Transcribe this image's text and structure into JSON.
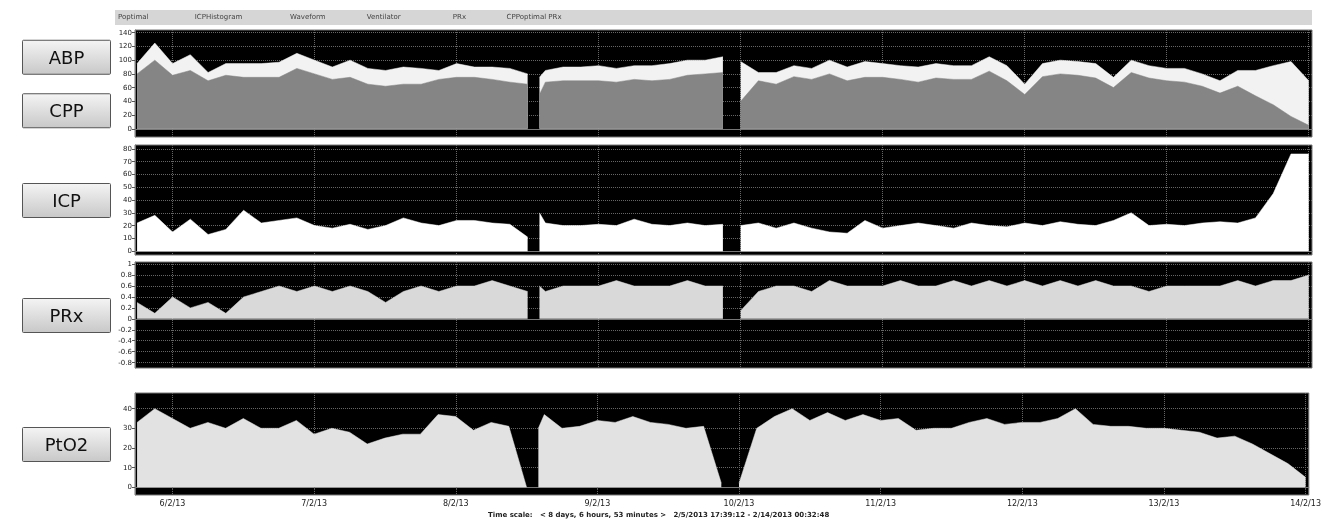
{
  "chart_data": [
    {
      "type": "area",
      "annotations": [
        "Poptimal",
        "ICPHistogram",
        "Waveform",
        "Ventilator",
        "PRx",
        "CPPoptimal PRx"
      ],
      "x": [
        "2013-02-05T18:00",
        "2013-02-05T21:00",
        "2013-02-06T00:00",
        "2013-02-06T03:00",
        "2013-02-06T06:00",
        "2013-02-06T09:00",
        "2013-02-06T12:00",
        "2013-02-06T15:00",
        "2013-02-06T18:00",
        "2013-02-06T21:00",
        "2013-02-07T00:00",
        "2013-02-07T03:00",
        "2013-02-07T06:00",
        "2013-02-07T09:00",
        "2013-02-07T12:00",
        "2013-02-07T15:00",
        "2013-02-07T18:00",
        "2013-02-07T21:00",
        "2013-02-08T00:00",
        "2013-02-08T03:00",
        "2013-02-08T06:00",
        "2013-02-08T09:00",
        "2013-02-08T12:00",
        "2013-02-08T13:00",
        "2013-02-08T14:00",
        "2013-02-08T15:00",
        "2013-02-08T18:00",
        "2013-02-08T21:00",
        "2013-02-09T00:00",
        "2013-02-09T03:00",
        "2013-02-09T06:00",
        "2013-02-09T09:00",
        "2013-02-09T12:00",
        "2013-02-09T15:00",
        "2013-02-09T18:00",
        "2013-02-09T21:00",
        "2013-02-09T22:30",
        "2013-02-10T00:00",
        "2013-02-10T03:00",
        "2013-02-10T06:00",
        "2013-02-10T09:00",
        "2013-02-10T12:00",
        "2013-02-10T15:00",
        "2013-02-10T18:00",
        "2013-02-10T21:00",
        "2013-02-11T00:00",
        "2013-02-11T03:00",
        "2013-02-11T06:00",
        "2013-02-11T09:00",
        "2013-02-11T12:00",
        "2013-02-11T15:00",
        "2013-02-11T18:00",
        "2013-02-11T21:00",
        "2013-02-12T00:00",
        "2013-02-12T03:00",
        "2013-02-12T06:00",
        "2013-02-12T09:00",
        "2013-02-12T12:00",
        "2013-02-12T15:00",
        "2013-02-12T18:00",
        "2013-02-12T21:00",
        "2013-02-13T00:00",
        "2013-02-13T03:00",
        "2013-02-13T06:00",
        "2013-02-13T09:00",
        "2013-02-13T12:00",
        "2013-02-13T15:00",
        "2013-02-13T18:00",
        "2013-02-13T21:00",
        "2013-02-14T00:00"
      ],
      "xlim": [
        "2013-02-05T17:39",
        "2013-02-14T00:33"
      ],
      "xticks": [
        {
          "value": "2013-02-06",
          "label": null
        },
        {
          "value": "2013-02-07",
          "label": null
        },
        {
          "value": "2013-02-08",
          "label": null
        },
        {
          "value": "2013-02-09",
          "label": null
        },
        {
          "value": "2013-02-10",
          "label": null
        },
        {
          "value": "2013-02-11",
          "label": null
        },
        {
          "value": "2013-02-12",
          "label": null
        },
        {
          "value": "2013-02-13",
          "label": null
        },
        {
          "value": "2013-02-14",
          "label": null
        }
      ],
      "ylim": [
        -12,
        144
      ],
      "yticks": [
        0,
        20,
        40,
        60,
        80,
        100,
        120,
        140
      ],
      "grid": true,
      "tick_labels": "y",
      "series": [
        {
          "name": "ABP",
          "color": "#f2f2f2",
          "values": [
            95,
            125,
            95,
            108,
            82,
            95,
            95,
            95,
            97,
            110,
            100,
            90,
            100,
            88,
            85,
            90,
            88,
            85,
            95,
            90,
            90,
            88,
            80,
            null,
            75,
            85,
            90,
            90,
            92,
            88,
            92,
            92,
            95,
            100,
            100,
            105,
            null,
            98,
            82,
            82,
            92,
            88,
            100,
            90,
            98,
            95,
            92,
            90,
            95,
            92,
            92,
            105,
            92,
            65,
            95,
            100,
            98,
            95,
            75,
            100,
            92,
            88,
            88,
            80,
            70,
            85,
            85,
            92,
            98,
            70
          ]
        },
        {
          "name": "CPP",
          "color": "#858585",
          "values": [
            80,
            100,
            78,
            85,
            70,
            78,
            75,
            75,
            75,
            88,
            80,
            72,
            75,
            65,
            62,
            65,
            65,
            72,
            75,
            75,
            72,
            68,
            65,
            null,
            50,
            68,
            70,
            70,
            70,
            68,
            72,
            70,
            72,
            78,
            80,
            82,
            null,
            40,
            70,
            65,
            76,
            72,
            80,
            70,
            75,
            75,
            72,
            68,
            74,
            72,
            72,
            84,
            70,
            50,
            76,
            80,
            78,
            74,
            60,
            82,
            74,
            70,
            68,
            62,
            52,
            62,
            48,
            35,
            18,
            5
          ]
        }
      ]
    },
    {
      "type": "area",
      "x": [
        "2013-02-05T18:00",
        "2013-02-05T21:00",
        "2013-02-06T00:00",
        "2013-02-06T03:00",
        "2013-02-06T06:00",
        "2013-02-06T09:00",
        "2013-02-06T12:00",
        "2013-02-06T15:00",
        "2013-02-06T18:00",
        "2013-02-06T21:00",
        "2013-02-07T00:00",
        "2013-02-07T03:00",
        "2013-02-07T06:00",
        "2013-02-07T09:00",
        "2013-02-07T12:00",
        "2013-02-07T15:00",
        "2013-02-07T18:00",
        "2013-02-07T21:00",
        "2013-02-08T00:00",
        "2013-02-08T03:00",
        "2013-02-08T06:00",
        "2013-02-08T09:00",
        "2013-02-08T12:00",
        "2013-02-08T13:00",
        "2013-02-08T14:00",
        "2013-02-08T15:00",
        "2013-02-08T18:00",
        "2013-02-08T21:00",
        "2013-02-09T00:00",
        "2013-02-09T03:00",
        "2013-02-09T06:00",
        "2013-02-09T09:00",
        "2013-02-09T12:00",
        "2013-02-09T15:00",
        "2013-02-09T18:00",
        "2013-02-09T21:00",
        "2013-02-09T22:30",
        "2013-02-10T00:00",
        "2013-02-10T03:00",
        "2013-02-10T06:00",
        "2013-02-10T09:00",
        "2013-02-10T12:00",
        "2013-02-10T15:00",
        "2013-02-10T18:00",
        "2013-02-10T21:00",
        "2013-02-11T00:00",
        "2013-02-11T03:00",
        "2013-02-11T06:00",
        "2013-02-11T09:00",
        "2013-02-11T12:00",
        "2013-02-11T15:00",
        "2013-02-11T18:00",
        "2013-02-11T21:00",
        "2013-02-12T00:00",
        "2013-02-12T03:00",
        "2013-02-12T06:00",
        "2013-02-12T09:00",
        "2013-02-12T12:00",
        "2013-02-12T15:00",
        "2013-02-12T18:00",
        "2013-02-12T21:00",
        "2013-02-13T00:00",
        "2013-02-13T03:00",
        "2013-02-13T06:00",
        "2013-02-13T09:00",
        "2013-02-13T12:00",
        "2013-02-13T15:00",
        "2013-02-13T18:00",
        "2013-02-13T21:00",
        "2013-02-14T00:00"
      ],
      "xlim": [
        "2013-02-05T17:39",
        "2013-02-14T00:33"
      ],
      "xticks": [
        {
          "value": "2013-02-06",
          "label": null
        },
        {
          "value": "2013-02-07",
          "label": null
        },
        {
          "value": "2013-02-08",
          "label": null
        },
        {
          "value": "2013-02-09",
          "label": null
        },
        {
          "value": "2013-02-10",
          "label": null
        },
        {
          "value": "2013-02-11",
          "label": null
        },
        {
          "value": "2013-02-12",
          "label": null
        },
        {
          "value": "2013-02-13",
          "label": null
        },
        {
          "value": "2013-02-14",
          "label": null
        }
      ],
      "ylim": [
        -3,
        83
      ],
      "yticks": [
        0,
        10,
        20,
        30,
        40,
        50,
        60,
        70,
        80
      ],
      "grid": true,
      "tick_labels": "y",
      "series": [
        {
          "name": "ICP",
          "color": "#ffffff",
          "values": [
            22,
            28,
            15,
            25,
            13,
            17,
            32,
            22,
            24,
            26,
            20,
            18,
            21,
            17,
            20,
            26,
            22,
            20,
            24,
            24,
            22,
            21,
            11,
            null,
            30,
            22,
            20,
            20,
            21,
            20,
            25,
            21,
            20,
            22,
            20,
            21,
            null,
            20,
            22,
            18,
            22,
            18,
            15,
            14,
            24,
            18,
            20,
            22,
            20,
            18,
            22,
            20,
            19,
            22,
            20,
            23,
            21,
            20,
            24,
            30,
            20,
            21,
            20,
            22,
            23,
            22,
            26,
            45,
            76,
            76
          ]
        }
      ]
    },
    {
      "type": "area",
      "x": [
        "2013-02-05T18:00",
        "2013-02-05T21:00",
        "2013-02-06T00:00",
        "2013-02-06T03:00",
        "2013-02-06T06:00",
        "2013-02-06T09:00",
        "2013-02-06T12:00",
        "2013-02-06T15:00",
        "2013-02-06T18:00",
        "2013-02-06T21:00",
        "2013-02-07T00:00",
        "2013-02-07T03:00",
        "2013-02-07T06:00",
        "2013-02-07T09:00",
        "2013-02-07T12:00",
        "2013-02-07T15:00",
        "2013-02-07T18:00",
        "2013-02-07T21:00",
        "2013-02-08T00:00",
        "2013-02-08T03:00",
        "2013-02-08T06:00",
        "2013-02-08T09:00",
        "2013-02-08T12:00",
        "2013-02-08T13:00",
        "2013-02-08T14:00",
        "2013-02-08T15:00",
        "2013-02-08T18:00",
        "2013-02-08T21:00",
        "2013-02-09T00:00",
        "2013-02-09T03:00",
        "2013-02-09T06:00",
        "2013-02-09T09:00",
        "2013-02-09T12:00",
        "2013-02-09T15:00",
        "2013-02-09T18:00",
        "2013-02-09T21:00",
        "2013-02-09T22:30",
        "2013-02-10T00:00",
        "2013-02-10T03:00",
        "2013-02-10T06:00",
        "2013-02-10T09:00",
        "2013-02-10T12:00",
        "2013-02-10T15:00",
        "2013-02-10T18:00",
        "2013-02-10T21:00",
        "2013-02-11T00:00",
        "2013-02-11T03:00",
        "2013-02-11T06:00",
        "2013-02-11T09:00",
        "2013-02-11T12:00",
        "2013-02-11T15:00",
        "2013-02-11T18:00",
        "2013-02-11T21:00",
        "2013-02-12T00:00",
        "2013-02-12T03:00",
        "2013-02-12T06:00",
        "2013-02-12T09:00",
        "2013-02-12T12:00",
        "2013-02-12T15:00",
        "2013-02-12T18:00",
        "2013-02-12T21:00",
        "2013-02-13T00:00",
        "2013-02-13T03:00",
        "2013-02-13T06:00",
        "2013-02-13T09:00",
        "2013-02-13T12:00",
        "2013-02-13T15:00",
        "2013-02-13T18:00",
        "2013-02-13T21:00",
        "2013-02-14T00:00"
      ],
      "xlim": [
        "2013-02-05T17:39",
        "2013-02-14T00:33"
      ],
      "xticks": [
        {
          "value": "2013-02-06",
          "label": null
        },
        {
          "value": "2013-02-07",
          "label": null
        },
        {
          "value": "2013-02-08",
          "label": null
        },
        {
          "value": "2013-02-09",
          "label": null
        },
        {
          "value": "2013-02-10",
          "label": null
        },
        {
          "value": "2013-02-11",
          "label": null
        },
        {
          "value": "2013-02-12",
          "label": null
        },
        {
          "value": "2013-02-13",
          "label": null
        },
        {
          "value": "2013-02-14",
          "label": null
        }
      ],
      "ylim": [
        -0.9,
        1.04
      ],
      "yticks": [
        -0.8,
        -0.6,
        -0.4,
        -0.2,
        0,
        0.2,
        0.4,
        0.6,
        0.8,
        1
      ],
      "grid": true,
      "tick_labels": "y",
      "series": [
        {
          "name": "PRx",
          "color": "#d9d9d9",
          "values": [
            0.3,
            0.1,
            0.4,
            0.2,
            0.3,
            0.1,
            0.4,
            0.5,
            0.6,
            0.5,
            0.6,
            0.5,
            0.6,
            0.5,
            0.3,
            0.5,
            0.6,
            0.5,
            0.6,
            0.6,
            0.7,
            0.6,
            0.5,
            null,
            0.6,
            0.5,
            0.6,
            0.6,
            0.6,
            0.7,
            0.6,
            0.6,
            0.6,
            0.7,
            0.6,
            0.6,
            null,
            0.15,
            0.5,
            0.6,
            0.6,
            0.5,
            0.7,
            0.6,
            0.6,
            0.6,
            0.7,
            0.6,
            0.6,
            0.7,
            0.6,
            0.7,
            0.6,
            0.7,
            0.6,
            0.7,
            0.6,
            0.7,
            0.6,
            0.6,
            0.5,
            0.6,
            0.6,
            0.6,
            0.6,
            0.7,
            0.6,
            0.7,
            0.7,
            0.8
          ]
        }
      ]
    },
    {
      "type": "area",
      "annotations": [
        "Time scale:   < 8 days, 6 hours, 53 minutes >   2/5/2013 17:39:12 - 2/14/2013 00:32:48"
      ],
      "x": [
        "2013-02-05T18:00",
        "2013-02-05T21:00",
        "2013-02-06T00:00",
        "2013-02-06T03:00",
        "2013-02-06T06:00",
        "2013-02-06T09:00",
        "2013-02-06T12:00",
        "2013-02-06T15:00",
        "2013-02-06T18:00",
        "2013-02-06T21:00",
        "2013-02-07T00:00",
        "2013-02-07T03:00",
        "2013-02-07T06:00",
        "2013-02-07T09:00",
        "2013-02-07T12:00",
        "2013-02-07T15:00",
        "2013-02-07T18:00",
        "2013-02-07T21:00",
        "2013-02-08T00:00",
        "2013-02-08T03:00",
        "2013-02-08T06:00",
        "2013-02-08T09:00",
        "2013-02-08T12:00",
        "2013-02-08T13:00",
        "2013-02-08T14:00",
        "2013-02-08T15:00",
        "2013-02-08T18:00",
        "2013-02-08T21:00",
        "2013-02-09T00:00",
        "2013-02-09T03:00",
        "2013-02-09T06:00",
        "2013-02-09T09:00",
        "2013-02-09T12:00",
        "2013-02-09T15:00",
        "2013-02-09T18:00",
        "2013-02-09T21:00",
        "2013-02-09T22:30",
        "2013-02-10T00:00",
        "2013-02-10T03:00",
        "2013-02-10T06:00",
        "2013-02-10T09:00",
        "2013-02-10T12:00",
        "2013-02-10T15:00",
        "2013-02-10T18:00",
        "2013-02-10T21:00",
        "2013-02-11T00:00",
        "2013-02-11T03:00",
        "2013-02-11T06:00",
        "2013-02-11T09:00",
        "2013-02-11T12:00",
        "2013-02-11T15:00",
        "2013-02-11T18:00",
        "2013-02-11T21:00",
        "2013-02-12T00:00",
        "2013-02-12T03:00",
        "2013-02-12T06:00",
        "2013-02-12T09:00",
        "2013-02-12T12:00",
        "2013-02-12T15:00",
        "2013-02-12T18:00",
        "2013-02-12T21:00",
        "2013-02-13T00:00",
        "2013-02-13T03:00",
        "2013-02-13T06:00",
        "2013-02-13T09:00",
        "2013-02-13T12:00",
        "2013-02-13T15:00",
        "2013-02-13T18:00",
        "2013-02-13T21:00",
        "2013-02-14T00:00"
      ],
      "xlim": [
        "2013-02-05T17:39",
        "2013-02-14T00:33"
      ],
      "xticks": [
        {
          "value": "2013-02-06",
          "label": "6/2/13"
        },
        {
          "value": "2013-02-07",
          "label": "7/2/13"
        },
        {
          "value": "2013-02-08",
          "label": "8/2/13"
        },
        {
          "value": "2013-02-09",
          "label": "9/2/13"
        },
        {
          "value": "2013-02-10",
          "label": "10/2/13"
        },
        {
          "value": "2013-02-11",
          "label": "11/2/13"
        },
        {
          "value": "2013-02-12",
          "label": "12/2/13"
        },
        {
          "value": "2013-02-13",
          "label": "13/2/13"
        },
        {
          "value": "2013-02-14",
          "label": "14/2/13"
        }
      ],
      "ylim": [
        -4,
        48
      ],
      "yticks": [
        0,
        10,
        20,
        30,
        40
      ],
      "grid": true,
      "series": [
        {
          "name": "PtO2",
          "color": "#e2e2e2",
          "values": [
            33,
            40,
            35,
            30,
            33,
            30,
            35,
            30,
            30,
            34,
            27,
            30,
            28,
            22,
            25,
            27,
            27,
            37,
            36,
            29,
            33,
            31,
            0,
            null,
            30,
            37,
            30,
            31,
            34,
            33,
            36,
            33,
            32,
            30,
            31,
            2,
            null,
            2,
            30,
            36,
            40,
            34,
            38,
            34,
            37,
            34,
            35,
            29,
            30,
            30,
            33,
            35,
            32,
            33,
            33,
            35,
            40,
            32,
            31,
            31,
            30,
            30,
            29,
            28,
            25,
            26,
            22,
            17,
            12,
            5
          ]
        }
      ]
    }
  ]
}
